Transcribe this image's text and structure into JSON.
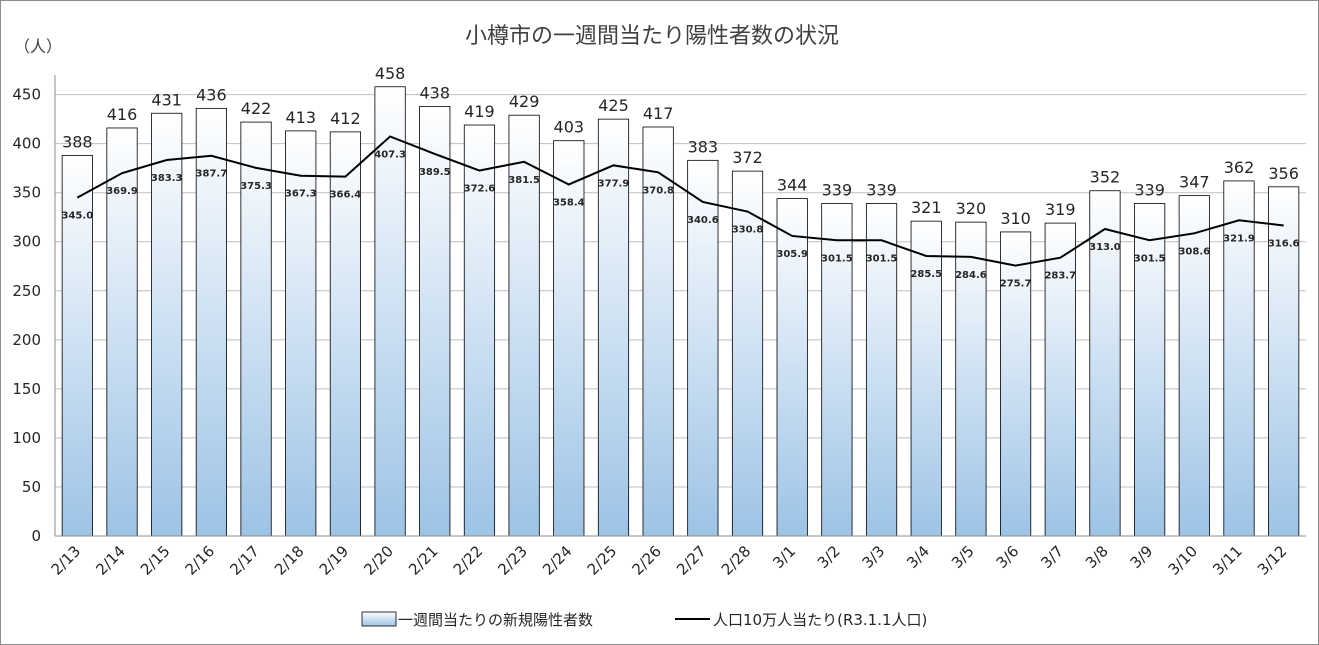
{
  "chart_data": {
    "type": "bar+line",
    "title": "小樽市の一週間当たり陽性者数の状況",
    "y_unit_label": "（人）",
    "ylim": [
      0,
      470
    ],
    "yticks": [
      0,
      50,
      100,
      150,
      200,
      250,
      300,
      350,
      400,
      450
    ],
    "grid": true,
    "legend_position": "bottom",
    "categories": [
      "2/13",
      "2/14",
      "2/15",
      "2/16",
      "2/17",
      "2/18",
      "2/19",
      "2/20",
      "2/21",
      "2/22",
      "2/23",
      "2/24",
      "2/25",
      "2/26",
      "2/27",
      "2/28",
      "3/1",
      "3/2",
      "3/3",
      "3/4",
      "3/5",
      "3/6",
      "3/7",
      "3/8",
      "3/9",
      "3/10",
      "3/11",
      "3/12"
    ],
    "series": [
      {
        "name": "一週間当たりの新規陽性者数",
        "kind": "bar",
        "values": [
          388,
          416,
          431,
          436,
          422,
          413,
          412,
          458,
          438,
          419,
          429,
          403,
          425,
          417,
          383,
          372,
          344,
          339,
          339,
          321,
          320,
          310,
          319,
          352,
          339,
          347,
          362,
          356
        ]
      },
      {
        "name": "人口10万人当たり(R3.1.1人口)",
        "kind": "line",
        "values": [
          345.0,
          369.9,
          383.3,
          387.7,
          375.3,
          367.3,
          366.4,
          407.3,
          389.5,
          372.6,
          381.5,
          358.4,
          377.9,
          370.8,
          340.6,
          330.8,
          305.9,
          301.5,
          301.5,
          285.5,
          284.6,
          275.7,
          283.7,
          313.0,
          301.5,
          308.6,
          321.9,
          316.6
        ]
      }
    ]
  },
  "colors": {
    "bar_top": "#ffffff",
    "bar_bottom": "#9dc3e6",
    "bar_stroke": "#000000",
    "line": "#000000",
    "grid": "#bfbfbf"
  }
}
